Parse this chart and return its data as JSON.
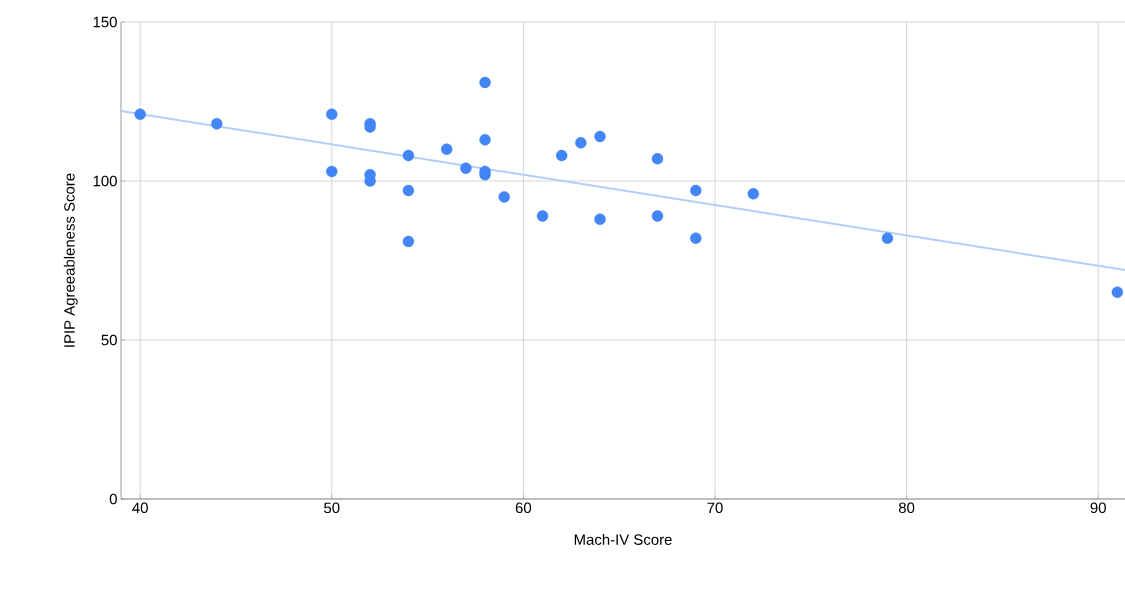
{
  "chart_data": {
    "type": "scatter",
    "xlabel": "Mach-IV Score",
    "ylabel": "IPIP Agreeableness Score",
    "xlim": [
      39,
      91.4
    ],
    "ylim": [
      0,
      150
    ],
    "xticks": [
      40,
      50,
      60,
      70,
      80,
      90
    ],
    "yticks": [
      0,
      50,
      100,
      150
    ],
    "grid": true,
    "series": [
      {
        "color": "#4285f4",
        "marker": "circle",
        "x": [
          40,
          44,
          50,
          50,
          52,
          52,
          52,
          52,
          54,
          54,
          54,
          56,
          57,
          58,
          58,
          58,
          58,
          59,
          61,
          62,
          63,
          64,
          64,
          67,
          67,
          69,
          69,
          72,
          79,
          91
        ],
        "values": [
          121,
          118,
          121,
          103,
          118,
          117,
          102,
          100,
          108,
          97,
          81,
          110,
          104,
          131,
          113,
          103,
          102,
          95,
          89,
          108,
          112,
          114,
          88,
          107,
          89,
          97,
          82,
          96,
          82,
          65
        ]
      },
      {
        "type": "line",
        "color": "#b3cdfb",
        "x": [
          39,
          91.4
        ],
        "values": [
          122,
          72
        ]
      }
    ]
  }
}
